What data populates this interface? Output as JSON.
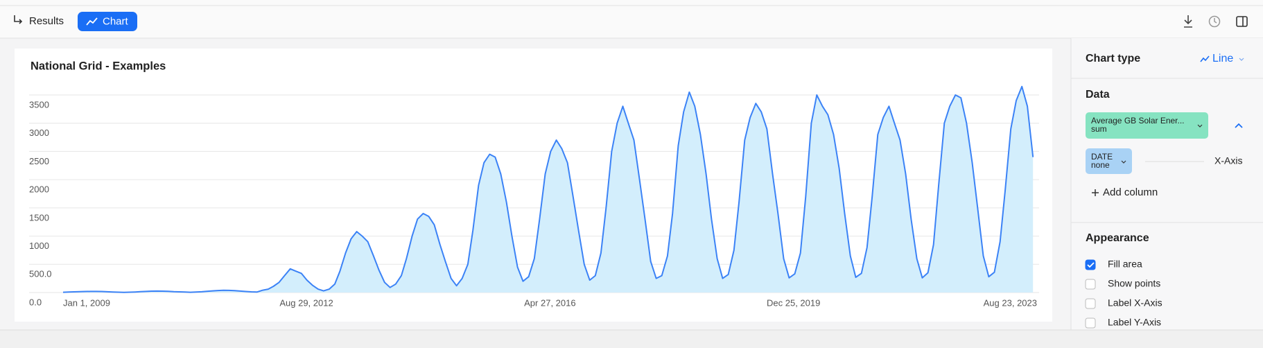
{
  "toolbar": {
    "results": "Results",
    "chart": "Chart"
  },
  "chart_data": {
    "type": "line",
    "title": "National Grid - Examples",
    "x": [
      "2009-01-01",
      "2009-02-01",
      "2009-03-01",
      "2009-04-01",
      "2009-05-01",
      "2009-06-01",
      "2009-07-01",
      "2009-08-01",
      "2009-09-01",
      "2009-10-01",
      "2009-11-01",
      "2009-12-01",
      "2010-01-01",
      "2010-02-01",
      "2010-03-01",
      "2010-04-01",
      "2010-05-01",
      "2010-06-01",
      "2010-07-01",
      "2010-08-01",
      "2010-09-01",
      "2010-10-01",
      "2010-11-01",
      "2010-12-01",
      "2011-01-01",
      "2011-02-01",
      "2011-03-01",
      "2011-04-01",
      "2011-05-01",
      "2011-06-01",
      "2011-07-01",
      "2011-08-01",
      "2011-09-01",
      "2011-10-01",
      "2011-11-01",
      "2011-12-01",
      "2012-01-01",
      "2012-02-01",
      "2012-03-01",
      "2012-04-01",
      "2012-05-01",
      "2012-06-01",
      "2012-07-01",
      "2012-08-01",
      "2012-09-01",
      "2012-10-01",
      "2012-11-01",
      "2012-12-01",
      "2013-01-01",
      "2013-02-01",
      "2013-03-01",
      "2013-04-01",
      "2013-05-01",
      "2013-06-01",
      "2013-07-01",
      "2013-08-01",
      "2013-09-01",
      "2013-10-01",
      "2013-11-01",
      "2013-12-01",
      "2014-01-01",
      "2014-02-01",
      "2014-03-01",
      "2014-04-01",
      "2014-05-01",
      "2014-06-01",
      "2014-07-01",
      "2014-08-01",
      "2014-09-01",
      "2014-10-01",
      "2014-11-01",
      "2014-12-01",
      "2015-01-01",
      "2015-02-01",
      "2015-03-01",
      "2015-04-01",
      "2015-05-01",
      "2015-06-01",
      "2015-07-01",
      "2015-08-01",
      "2015-09-01",
      "2015-10-01",
      "2015-11-01",
      "2015-12-01",
      "2016-01-01",
      "2016-02-01",
      "2016-03-01",
      "2016-04-01",
      "2016-05-01",
      "2016-06-01",
      "2016-07-01",
      "2016-08-01",
      "2016-09-01",
      "2016-10-01",
      "2016-11-01",
      "2016-12-01",
      "2017-01-01",
      "2017-02-01",
      "2017-03-01",
      "2017-04-01",
      "2017-05-01",
      "2017-06-01",
      "2017-07-01",
      "2017-08-01",
      "2017-09-01",
      "2017-10-01",
      "2017-11-01",
      "2017-12-01",
      "2018-01-01",
      "2018-02-01",
      "2018-03-01",
      "2018-04-01",
      "2018-05-01",
      "2018-06-01",
      "2018-07-01",
      "2018-08-01",
      "2018-09-01",
      "2018-10-01",
      "2018-11-01",
      "2018-12-01",
      "2019-01-01",
      "2019-02-01",
      "2019-03-01",
      "2019-04-01",
      "2019-05-01",
      "2019-06-01",
      "2019-07-01",
      "2019-08-01",
      "2019-09-01",
      "2019-10-01",
      "2019-11-01",
      "2019-12-01",
      "2020-01-01",
      "2020-02-01",
      "2020-03-01",
      "2020-04-01",
      "2020-05-01",
      "2020-06-01",
      "2020-07-01",
      "2020-08-01",
      "2020-09-01",
      "2020-10-01",
      "2020-11-01",
      "2020-12-01",
      "2021-01-01",
      "2021-02-01",
      "2021-03-01",
      "2021-04-01",
      "2021-05-01",
      "2021-06-01",
      "2021-07-01",
      "2021-08-01",
      "2021-09-01",
      "2021-10-01",
      "2021-11-01",
      "2021-12-01",
      "2022-01-01",
      "2022-02-01",
      "2022-03-01",
      "2022-04-01",
      "2022-05-01",
      "2022-06-01",
      "2022-07-01",
      "2022-08-01",
      "2022-09-01",
      "2022-10-01",
      "2022-11-01",
      "2022-12-01",
      "2023-01-01",
      "2023-02-01",
      "2023-03-01",
      "2023-04-01",
      "2023-05-01",
      "2023-06-01",
      "2023-07-01",
      "2023-08-01"
    ],
    "series": [
      {
        "color": "#3b82f6",
        "fill": "#d3eefc",
        "values": [
          5,
          8,
          12,
          15,
          18,
          20,
          20,
          18,
          14,
          10,
          6,
          4,
          6,
          10,
          15,
          20,
          24,
          26,
          25,
          22,
          16,
          12,
          8,
          5,
          8,
          14,
          22,
          30,
          36,
          40,
          38,
          34,
          26,
          18,
          12,
          8,
          40,
          60,
          110,
          180,
          300,
          420,
          380,
          340,
          220,
          130,
          60,
          30,
          60,
          150,
          380,
          700,
          950,
          1080,
          1000,
          900,
          650,
          400,
          180,
          90,
          150,
          300,
          600,
          1000,
          1300,
          1400,
          1350,
          1200,
          850,
          550,
          250,
          120,
          250,
          500,
          1100,
          1900,
          2300,
          2450,
          2400,
          2100,
          1600,
          1000,
          450,
          200,
          280,
          600,
          1300,
          2100,
          2500,
          2700,
          2550,
          2300,
          1700,
          1100,
          500,
          220,
          300,
          700,
          1500,
          2500,
          3000,
          3300,
          3000,
          2700,
          2000,
          1300,
          550,
          250,
          300,
          650,
          1400,
          2600,
          3200,
          3550,
          3300,
          2800,
          2100,
          1300,
          600,
          250,
          320,
          750,
          1600,
          2700,
          3100,
          3350,
          3200,
          2900,
          2100,
          1400,
          600,
          260,
          330,
          700,
          1700,
          3000,
          3500,
          3300,
          3150,
          2800,
          2200,
          1400,
          650,
          270,
          340,
          800,
          1700,
          2800,
          3100,
          3300,
          3000,
          2700,
          2100,
          1300,
          600,
          260,
          350,
          850,
          1900,
          3000,
          3300,
          3500,
          3450,
          3000,
          2300,
          1500,
          650,
          280,
          360,
          900,
          1800,
          2900,
          3400,
          3650,
          3300,
          2400
        ]
      }
    ],
    "xlim": [
      "2009-01-01",
      "2023-08-23"
    ],
    "xticks": [
      {
        "value": "2009-01-01",
        "label": "Jan 1, 2009"
      },
      {
        "value": "2012-08-29",
        "label": "Aug 29, 2012"
      },
      {
        "value": "2016-04-27",
        "label": "Apr 27, 2016"
      },
      {
        "value": "2019-12-25",
        "label": "Dec 25, 2019"
      },
      {
        "value": "2023-08-23",
        "label": "Aug 23, 2023"
      }
    ],
    "ylim": [
      0,
      3700
    ],
    "yticks": [
      {
        "value": 0,
        "label": "0.0"
      },
      {
        "value": 500,
        "label": "500.0"
      },
      1000,
      1500,
      2000,
      2500,
      3000,
      3500
    ],
    "grid": true
  },
  "panel": {
    "chart_type_label": "Chart type",
    "chart_type": "Line",
    "data_heading": "Data",
    "columns": [
      {
        "name": "Average GB Solar Ener...",
        "agg": "sum"
      },
      {
        "name": "DATE",
        "agg": "none",
        "role": "X-Axis"
      }
    ],
    "add_column": "Add column",
    "appearance_heading": "Appearance",
    "options": [
      {
        "label": "Fill area",
        "checked": true
      },
      {
        "label": "Show points",
        "checked": false
      },
      {
        "label": "Label X-Axis",
        "checked": false
      },
      {
        "label": "Label Y-Axis",
        "checked": false
      }
    ]
  }
}
